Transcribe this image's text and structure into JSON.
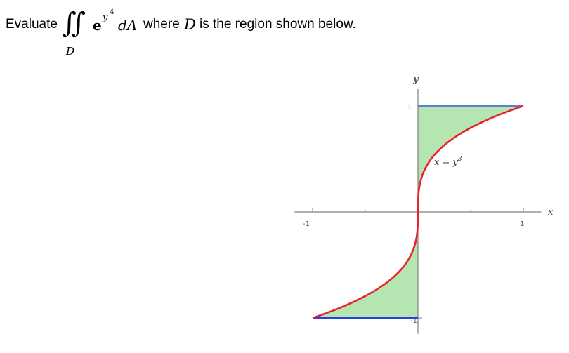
{
  "problem": {
    "lead": "Evaluate",
    "integral_sign": "∬",
    "integral_subscript": "D",
    "integrand_base": "e",
    "integrand_exp_var": "y",
    "integrand_exp_power": "4",
    "differential": "dA",
    "where_text": "where",
    "region_symbol": "D",
    "tail": "is the region shown below."
  },
  "figure": {
    "axis_label_x": "x",
    "axis_label_y": "y",
    "tick_x_neg": "-1",
    "tick_x_pos": "1",
    "tick_y_pos": "1",
    "tick_y_neg": "-1",
    "curve_label_lhs": "x = y",
    "curve_label_exp": "3",
    "colors": {
      "fill": "#b5e5b0",
      "curve": "#e8242a",
      "boundary": "#2a3fe0",
      "top_boundary": "#5b7fd6",
      "axis": "#808080"
    }
  }
}
